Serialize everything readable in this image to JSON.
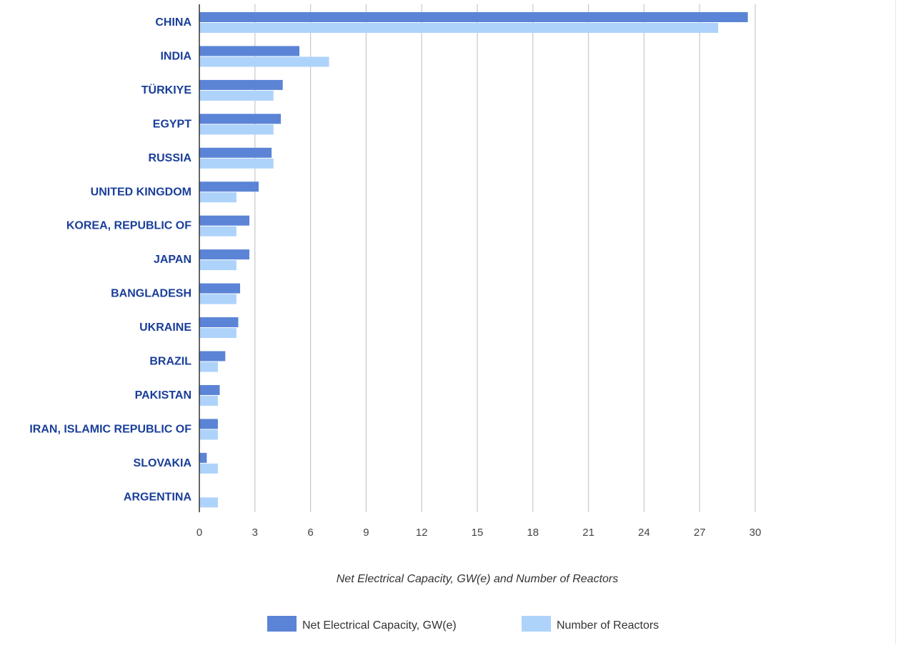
{
  "chart_data": {
    "type": "bar",
    "orientation": "horizontal",
    "categories": [
      "CHINA",
      "INDIA",
      "TÜRKIYE",
      "EGYPT",
      "RUSSIA",
      "UNITED KINGDOM",
      "KOREA, REPUBLIC OF",
      "JAPAN",
      "BANGLADESH",
      "UKRAINE",
      "BRAZIL",
      "PAKISTAN",
      "IRAN, ISLAMIC REPUBLIC OF",
      "SLOVAKIA",
      "ARGENTINA"
    ],
    "series": [
      {
        "name": "Net Electrical Capacity, GW(e)",
        "color": "#5b84d6",
        "values": [
          29.6,
          5.4,
          4.5,
          4.4,
          3.9,
          3.2,
          2.7,
          2.7,
          2.2,
          2.1,
          1.4,
          1.1,
          1.0,
          0.4,
          0.0
        ]
      },
      {
        "name": "Number of Reactors",
        "color": "#aed3fb",
        "values": [
          28,
          7,
          4,
          4,
          4,
          2,
          2,
          2,
          2,
          2,
          1,
          1,
          1,
          1,
          1
        ]
      }
    ],
    "xaxis": {
      "min": 0,
      "max": 30,
      "ticks": [
        "0",
        "3",
        "6",
        "9",
        "12",
        "15",
        "18",
        "21",
        "24",
        "27",
        "30"
      ]
    },
    "xlabel": "Net Electrical Capacity, GW(e) and Number of Reactors",
    "ylabel": "",
    "grid": true,
    "legend_position": "bottom"
  }
}
